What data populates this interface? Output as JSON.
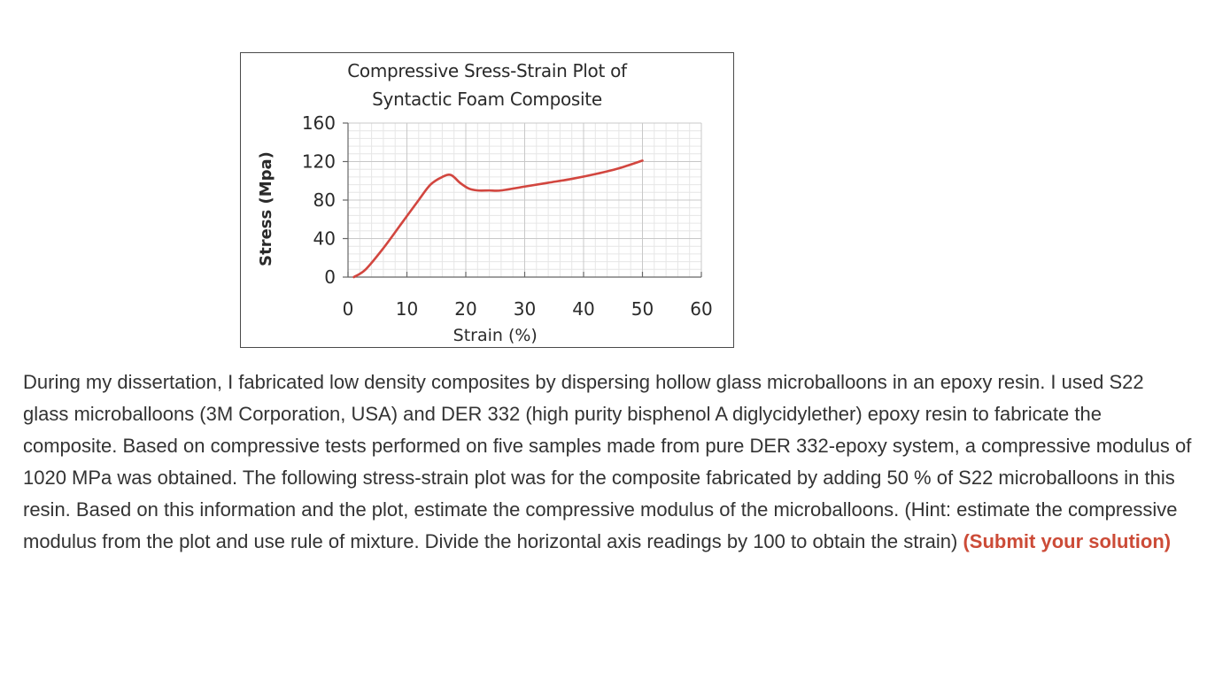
{
  "chart_data": {
    "type": "line",
    "title_line1": "Compressive Sress-Strain Plot of",
    "title_line2": "Syntactic Foam Composite",
    "xlabel": "Strain (%)",
    "ylabel": "Stress (Mpa)",
    "xlim": [
      0,
      60
    ],
    "ylim": [
      0,
      160
    ],
    "xticks": [
      0,
      10,
      20,
      30,
      40,
      50,
      60
    ],
    "yticks": [
      0,
      40,
      80,
      120,
      160
    ],
    "grid": true,
    "series": [
      {
        "color": "#d2463f",
        "x": [
          1,
          3,
          6,
          9,
          12,
          14,
          16,
          17.5,
          19,
          20.5,
          22,
          24,
          26,
          30,
          34,
          38,
          42,
          46,
          50
        ],
        "y": [
          0,
          8,
          30,
          55,
          80,
          96,
          104,
          106,
          98,
          92,
          90,
          90,
          90,
          94,
          98,
          102,
          107,
          113,
          121
        ]
      }
    ]
  },
  "question": {
    "text": "During my dissertation, I fabricated low density composites by dispersing hollow glass microballoons in an epoxy resin. I used S22 glass microballoons (3M Corporation, USA) and DER 332 (high purity bisphenol A diglycidylether) epoxy resin to fabricate the composite. Based on compressive tests performed on five samples made from pure DER 332-epoxy system, a compressive modulus of 1020 MPa was obtained. The following stress-strain plot was for the composite fabricated by adding 50 % of S22 microballoons in this resin. Based on this information and the plot, estimate the compressive modulus of the microballoons. (Hint: estimate the compressive modulus from the plot and use rule of mixture. Divide the horizontal axis readings by 100 to obtain the strain) ",
    "submit_label": "(Submit your solution)"
  },
  "colors": {
    "series": "#d2463f",
    "link": "#cc4b37",
    "text": "#333333"
  }
}
